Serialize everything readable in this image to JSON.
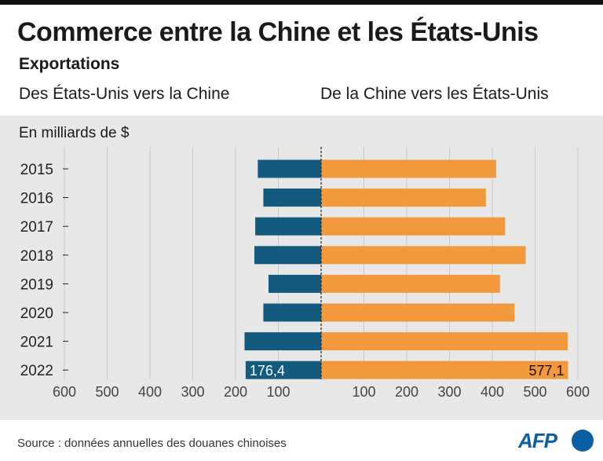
{
  "header": {
    "title": "Commerce entre la Chine et les États-Unis",
    "subtitle": "Exportations",
    "left_label": "Des États-Unis vers la Chine",
    "right_label": "De la Chine vers les États-Unis",
    "unit": "En milliards de $"
  },
  "footer": {
    "source": "Source : données annuelles des douanes chinoises",
    "logo": "AFP"
  },
  "colors": {
    "us_to_china": "#135a7e",
    "china_to_us": "#f2983d",
    "axis": "#222222",
    "grid": "#c8c8c8"
  },
  "chart_data": {
    "type": "bar",
    "orientation": "horizontal-diverging",
    "categories": [
      "2015",
      "2016",
      "2017",
      "2018",
      "2019",
      "2020",
      "2021",
      "2022"
    ],
    "series": [
      {
        "name": "Des États-Unis vers la Chine",
        "values": [
          148,
          135,
          154,
          156,
          123,
          135,
          179,
          176.4
        ]
      },
      {
        "name": "De la Chine vers les États-Unis",
        "values": [
          409,
          385,
          430,
          478,
          418,
          452,
          576,
          577.1
        ]
      }
    ],
    "data_labels": [
      {
        "series": 0,
        "category": "2022",
        "text": "176,4"
      },
      {
        "series": 1,
        "category": "2022",
        "text": "577,1"
      }
    ],
    "left_ticks": [
      "600",
      "500",
      "400",
      "300",
      "200",
      "100"
    ],
    "right_ticks": [
      "100",
      "200",
      "300",
      "400",
      "500",
      "600"
    ],
    "xlim": [
      0,
      600
    ],
    "grid": true
  }
}
